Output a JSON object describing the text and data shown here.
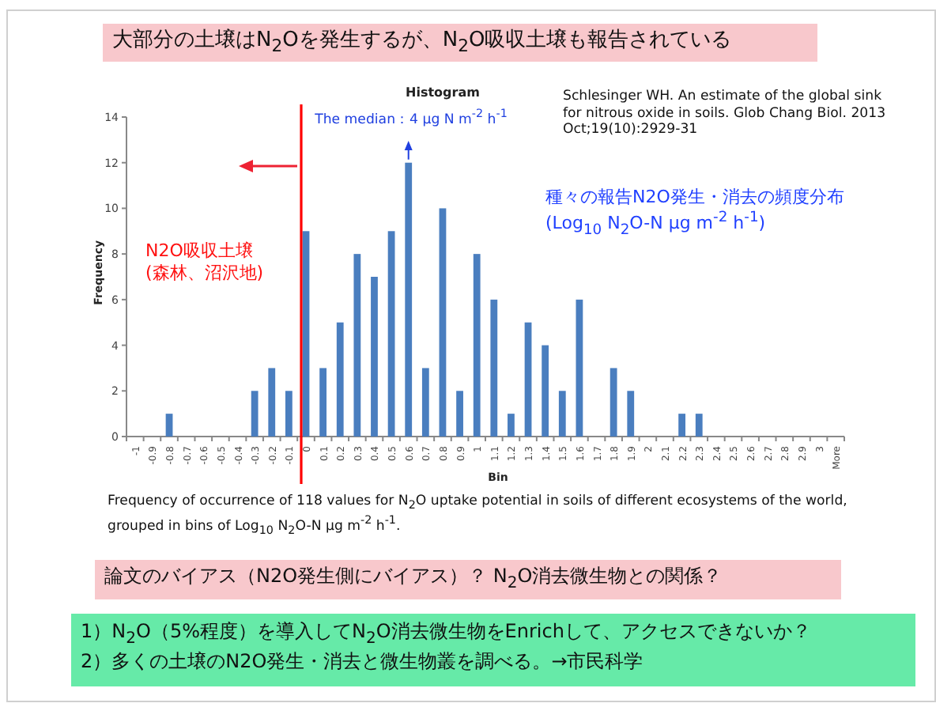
{
  "chart_data": {
    "type": "bar",
    "title": "大部分の土壌はN$_{2}$Oを発生するが、N$_{2}$O吸収土壌も報告されている",
    "subtitle": "Histogram",
    "xlabel": "Bin",
    "ylabel": "Frequency",
    "categories": [
      "-1",
      "-0.9",
      "-0.8",
      "-0.7",
      "-0.6",
      "-0.5",
      "-0.4",
      "-0.3",
      "-0.2",
      "-0.1",
      "0",
      "0.1",
      "0.2",
      "0.3",
      "0.4",
      "0.5",
      "0.6",
      "0.7",
      "0.8",
      "0.9",
      "1",
      "1.1",
      "1.2",
      "1.3",
      "1.4",
      "1.5",
      "1.6",
      "1.7",
      "1.8",
      "1.9",
      "2",
      "2.1",
      "2.2",
      "2.3",
      "2.4",
      "2.5",
      "2.6",
      "2.7",
      "2.8",
      "2.9",
      "3",
      "More"
    ],
    "values": [
      0,
      0,
      1,
      0,
      0,
      0,
      0,
      2,
      3,
      2,
      9,
      3,
      5,
      8,
      7,
      9,
      12,
      3,
      10,
      2,
      8,
      6,
      1,
      5,
      4,
      2,
      6,
      0,
      3,
      2,
      0,
      0,
      1,
      1,
      0,
      0,
      0,
      0,
      0,
      0,
      0,
      0
    ],
    "color": "#4a7ebf",
    "ylim": [
      0,
      14
    ],
    "yticks": [
      0,
      2,
      4,
      6,
      8,
      10,
      12,
      14
    ],
    "grid": false,
    "ref_lines": [
      {
        "axis": "x",
        "value": "0",
        "color": "#ff0000"
      }
    ],
    "annotations": [
      "Schlesinger WH. An estimate of the global sink for nitrous oxide in soils. Glob Chang Biol. 2013 Oct;19(10):2929-31",
      {
        "text": "The median：4 μg N m$^{-2}$ h$^{-1}$",
        "x": "0.6",
        "y": 12
      },
      "N2O吸収土壌(森林、沼沢地)",
      "種々の報告N2O発生・消去の頻度分布(Log$_{10}$ N$_{2}$O-N μg m$^{-2}$ h$^{-1}$)",
      "Frequency of occurrence of 118 values for N$_{2}$O uptake potential in soils of different ecosystems of the world, grouped in bins of Log$_{10}$ N$_{2}$O-N μg m$^{-2}$ h$^{-1}$.",
      "論文のバイアス（N2O発生側にバイアス）？ N$_{2}$O消去微生物との関係？",
      "1）N$_{2}$O（5%程度）を導入してN$_{2}$O消去微生物をEnrichして、アクセスできないか？",
      "2）多くの土壌のN2O発生・消去と微生物叢を調べる。→市民科学"
    ]
  }
}
